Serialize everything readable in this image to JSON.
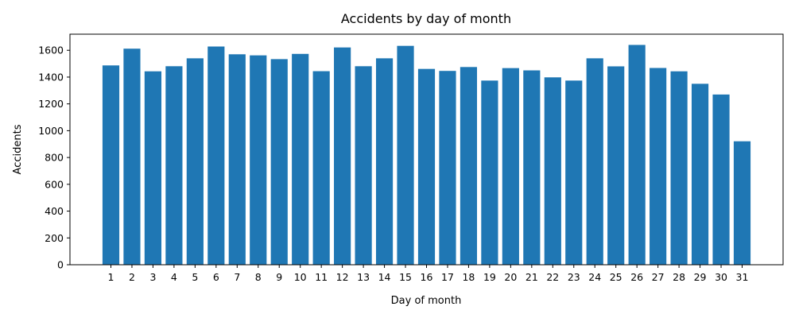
{
  "chart_data": {
    "type": "bar",
    "title": "Accidents by day of month",
    "xlabel": "Day of month",
    "ylabel": "Accidents",
    "categories": [
      "1",
      "2",
      "3",
      "4",
      "5",
      "6",
      "7",
      "8",
      "9",
      "10",
      "11",
      "12",
      "13",
      "14",
      "15",
      "16",
      "17",
      "18",
      "19",
      "20",
      "21",
      "22",
      "23",
      "24",
      "25",
      "26",
      "27",
      "28",
      "29",
      "30",
      "31"
    ],
    "values": [
      1487,
      1612,
      1443,
      1481,
      1540,
      1628,
      1570,
      1562,
      1534,
      1573,
      1444,
      1621,
      1481,
      1540,
      1633,
      1461,
      1446,
      1475,
      1374,
      1467,
      1450,
      1398,
      1374,
      1540,
      1480,
      1640,
      1468,
      1443,
      1350,
      1270,
      921
    ],
    "ylim": [
      0,
      1720
    ],
    "yticks": [
      0,
      200,
      400,
      600,
      800,
      1000,
      1200,
      1400,
      1600
    ],
    "bar_color": "#1f77b4",
    "grid": false,
    "legend": "none"
  }
}
